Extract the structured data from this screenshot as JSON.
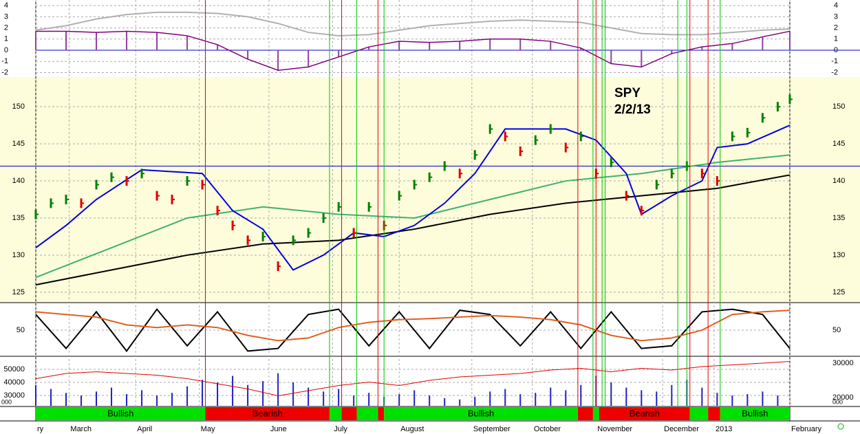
{
  "chart_data": {
    "type": "stock",
    "annotation": [
      "SPY",
      "2/2/13"
    ],
    "annotation_color": "#e00000",
    "xlim": [
      0,
      249
    ],
    "xticks": [
      {
        "value": 0,
        "label": "ry"
      },
      {
        "value": 11,
        "label": "March"
      },
      {
        "value": 33,
        "label": "April"
      },
      {
        "value": 54,
        "label": "May"
      },
      {
        "value": 77,
        "label": "June"
      },
      {
        "value": 98,
        "label": "July"
      },
      {
        "value": 120,
        "label": "August"
      },
      {
        "value": 144,
        "label": "September"
      },
      {
        "value": 164,
        "label": "October"
      },
      {
        "value": 185,
        "label": "November"
      },
      {
        "value": 207,
        "label": "December"
      },
      {
        "value": 224,
        "label": "2013"
      },
      {
        "value": 249,
        "label": "February"
      }
    ],
    "grid": true,
    "indicator": {
      "ylim": [
        -2.4,
        4.5
      ],
      "yticks": [
        4,
        3,
        2,
        1,
        0,
        -1,
        -2
      ],
      "x": [
        0,
        10,
        20,
        30,
        40,
        50,
        60,
        70,
        80,
        90,
        100,
        110,
        120,
        130,
        140,
        150,
        160,
        170,
        180,
        190,
        200,
        210,
        220,
        230,
        240,
        249
      ],
      "series": [
        {
          "color": "#800080",
          "values": [
            1.7,
            1.7,
            1.6,
            1.7,
            1.6,
            1.3,
            0.5,
            -0.8,
            -1.8,
            -1.5,
            -0.6,
            0.3,
            0.8,
            0.7,
            0.8,
            1.0,
            1.0,
            0.8,
            0.2,
            -1.2,
            -1.5,
            -0.3,
            0.3,
            0.6,
            1.2,
            1.7
          ]
        },
        {
          "color": "#b0b0b0",
          "values": [
            1.8,
            2.2,
            2.8,
            3.2,
            3.4,
            3.4,
            3.3,
            3.0,
            2.4,
            1.6,
            1.3,
            1.4,
            1.8,
            2.2,
            2.4,
            2.6,
            2.7,
            2.6,
            2.5,
            2.0,
            1.5,
            1.4,
            1.4,
            1.6,
            1.8,
            1.9
          ]
        }
      ]
    },
    "price": {
      "ylim": [
        123.6,
        154
      ],
      "yticks": [
        125,
        130,
        135,
        140,
        145,
        150
      ],
      "hline": 142,
      "hline_color": "#0000cc",
      "x": [
        0,
        5,
        10,
        15,
        20,
        25,
        30,
        35,
        40,
        45,
        50,
        55,
        60,
        65,
        70,
        75,
        80,
        85,
        90,
        95,
        100,
        105,
        110,
        115,
        120,
        125,
        130,
        135,
        140,
        145,
        150,
        155,
        160,
        165,
        170,
        175,
        180,
        185,
        190,
        195,
        200,
        205,
        210,
        215,
        220,
        225,
        230,
        235,
        240,
        245,
        249
      ],
      "values": [
        135.5,
        137,
        137.5,
        137,
        139.5,
        140.5,
        140,
        141,
        138,
        137.5,
        140,
        139.5,
        136,
        134,
        132,
        132.5,
        128.5,
        132,
        133,
        135,
        136.5,
        133,
        136.5,
        134,
        138,
        139.5,
        140.5,
        142,
        141,
        143.5,
        147,
        146,
        144,
        145.5,
        147,
        144.5,
        146,
        141,
        142.5,
        138,
        136,
        139.5,
        141,
        142,
        141,
        140,
        146,
        146.5,
        148.5,
        150,
        151
      ],
      "up_color": "#008000",
      "down_color": "#e00000",
      "series": [
        {
          "color": "#000000",
          "x": [
            0,
            25,
            50,
            75,
            100,
            125,
            150,
            175,
            200,
            225,
            249
          ],
          "values": [
            126,
            128,
            130,
            131.5,
            132,
            133.5,
            135.5,
            137,
            138,
            139,
            140.8
          ]
        },
        {
          "color": "#40b070",
          "x": [
            0,
            25,
            50,
            75,
            100,
            125,
            150,
            175,
            200,
            225,
            249
          ],
          "values": [
            127,
            131,
            135,
            136.5,
            135.5,
            135,
            137.5,
            140,
            141,
            142.5,
            143.5
          ]
        },
        {
          "color": "#0000dd",
          "x": [
            0,
            10,
            20,
            35,
            55,
            65,
            75,
            85,
            95,
            105,
            115,
            125,
            135,
            145,
            155,
            175,
            185,
            195,
            200,
            210,
            220,
            225,
            235,
            249
          ],
          "values": [
            131,
            134,
            137.5,
            141.5,
            141,
            136,
            133.5,
            128,
            130,
            133,
            132.5,
            134,
            137,
            141,
            147,
            147,
            145.5,
            141,
            135.5,
            138,
            140,
            144.5,
            145,
            147.5
          ]
        }
      ]
    },
    "oscillator": {
      "ylim": [
        0,
        100
      ],
      "yticks": [
        50
      ],
      "x": [
        0,
        10,
        20,
        30,
        40,
        50,
        60,
        70,
        80,
        90,
        100,
        110,
        120,
        130,
        140,
        150,
        160,
        170,
        180,
        190,
        200,
        210,
        220,
        230,
        240,
        249
      ],
      "series": [
        {
          "color": "#000000",
          "values": [
            80,
            15,
            85,
            10,
            90,
            20,
            85,
            10,
            15,
            80,
            90,
            20,
            85,
            15,
            88,
            80,
            20,
            85,
            15,
            85,
            15,
            20,
            85,
            90,
            80,
            15
          ]
        },
        {
          "color": "#e06020",
          "values": [
            85,
            80,
            75,
            60,
            55,
            60,
            55,
            40,
            30,
            35,
            55,
            65,
            70,
            72,
            75,
            78,
            75,
            70,
            60,
            40,
            30,
            35,
            50,
            80,
            85,
            88
          ]
        }
      ]
    },
    "volume": {
      "ylim": [
        22100,
        58950
      ],
      "yticks": [
        50000,
        40000,
        30000
      ],
      "y2lim": [
        17600,
        31600
      ],
      "y2ticks": [
        30000,
        20000
      ],
      "clipped_labels": [
        "000",
        "000"
      ],
      "x": [
        0,
        5,
        10,
        15,
        20,
        25,
        30,
        35,
        40,
        45,
        50,
        55,
        60,
        65,
        70,
        75,
        80,
        85,
        90,
        95,
        100,
        105,
        110,
        115,
        120,
        125,
        130,
        135,
        140,
        145,
        150,
        155,
        160,
        165,
        170,
        175,
        180,
        185,
        190,
        195,
        200,
        205,
        210,
        215,
        220,
        225,
        230,
        235,
        240,
        245
      ],
      "values": [
        38000,
        35000,
        32000,
        30000,
        33000,
        36000,
        31000,
        34000,
        30000,
        32000,
        37000,
        42000,
        40000,
        45000,
        38000,
        41000,
        47000,
        40000,
        36000,
        33000,
        35000,
        30000,
        32000,
        29000,
        31000,
        34000,
        30000,
        28000,
        27000,
        29000,
        33000,
        35000,
        31000,
        32000,
        36000,
        34000,
        38000,
        45000,
        40000,
        36000,
        34000,
        33000,
        38000,
        42000,
        36000,
        32000,
        30000,
        31000,
        33000,
        30000
      ],
      "color": "#2020c0",
      "series": [
        {
          "color": "#e00000",
          "axis": "y2",
          "x": [
            0,
            10,
            20,
            30,
            40,
            50,
            60,
            70,
            80,
            90,
            100,
            110,
            120,
            130,
            140,
            150,
            160,
            170,
            180,
            190,
            200,
            210,
            220,
            230,
            240,
            249
          ],
          "values": [
            25500,
            27000,
            27500,
            27000,
            26500,
            25500,
            24000,
            22500,
            20500,
            22000,
            23500,
            24500,
            23500,
            25000,
            26000,
            26500,
            27000,
            28000,
            28500,
            27500,
            28500,
            28000,
            29000,
            29500,
            30000,
            30500
          ]
        }
      ]
    },
    "signals": [
      {
        "x": 56,
        "color": "#e00000"
      },
      {
        "x": 97,
        "color": "#00c000"
      },
      {
        "x": 101,
        "color": "#e00000"
      },
      {
        "x": 106,
        "color": "#00c000"
      },
      {
        "x": 113,
        "color": "#e00000"
      },
      {
        "x": 115,
        "color": "#00c000"
      },
      {
        "x": 179,
        "color": "#e00000"
      },
      {
        "x": 184,
        "color": "#00c000"
      },
      {
        "x": 185,
        "color": "#e00000"
      },
      {
        "x": 187,
        "color": "#00c000"
      },
      {
        "x": 188,
        "color": "#00c000"
      },
      {
        "x": 212,
        "color": "#00c000"
      },
      {
        "x": 215,
        "color": "#00c000"
      },
      {
        "x": 216,
        "color": "#e00000"
      },
      {
        "x": 222,
        "color": "#e00000"
      },
      {
        "x": 226,
        "color": "#00c000"
      }
    ],
    "regimes": [
      {
        "start": 0,
        "end": 56,
        "color": "#00e000",
        "label": "Bullish"
      },
      {
        "start": 56,
        "end": 97,
        "color": "#ee0000",
        "label": "Bearish"
      },
      {
        "start": 97,
        "end": 101,
        "color": "#00e000"
      },
      {
        "start": 101,
        "end": 106,
        "color": "#ee0000"
      },
      {
        "start": 106,
        "end": 113,
        "color": "#00e000"
      },
      {
        "start": 113,
        "end": 115,
        "color": "#ee0000"
      },
      {
        "start": 115,
        "end": 179,
        "color": "#00e000",
        "label": "Bullish"
      },
      {
        "start": 179,
        "end": 184,
        "color": "#ee0000"
      },
      {
        "start": 184,
        "end": 186,
        "color": "#00e000"
      },
      {
        "start": 186,
        "end": 216,
        "color": "#ee0000",
        "label": "Bearish"
      },
      {
        "start": 216,
        "end": 222,
        "color": "#00e000"
      },
      {
        "start": 222,
        "end": 226,
        "color": "#ee0000"
      },
      {
        "start": 226,
        "end": 249,
        "color": "#00e000",
        "label": "Bullish"
      }
    ]
  }
}
